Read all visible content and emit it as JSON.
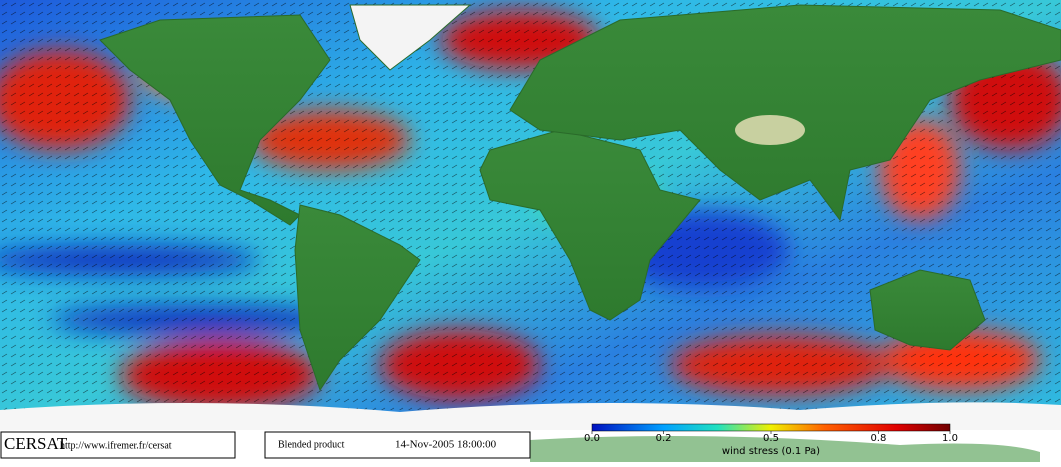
{
  "branding": {
    "name": "CERSAT",
    "url": "http://www.ifremer.fr/cersat"
  },
  "product": "Blended product",
  "timestamp": "14-Nov-2005 18:00:00",
  "colorbar": {
    "label": "wind stress (0.1 Pa)",
    "lim": [
      0,
      1
    ],
    "ticks": [
      {
        "value": 0,
        "label": "0.0"
      },
      {
        "value": 0.2,
        "label": "0.2"
      },
      {
        "value": 0.5,
        "label": "0.5"
      },
      {
        "value": 0.8,
        "label": "0.8"
      },
      {
        "value": 1,
        "label": "1.0"
      }
    ]
  }
}
